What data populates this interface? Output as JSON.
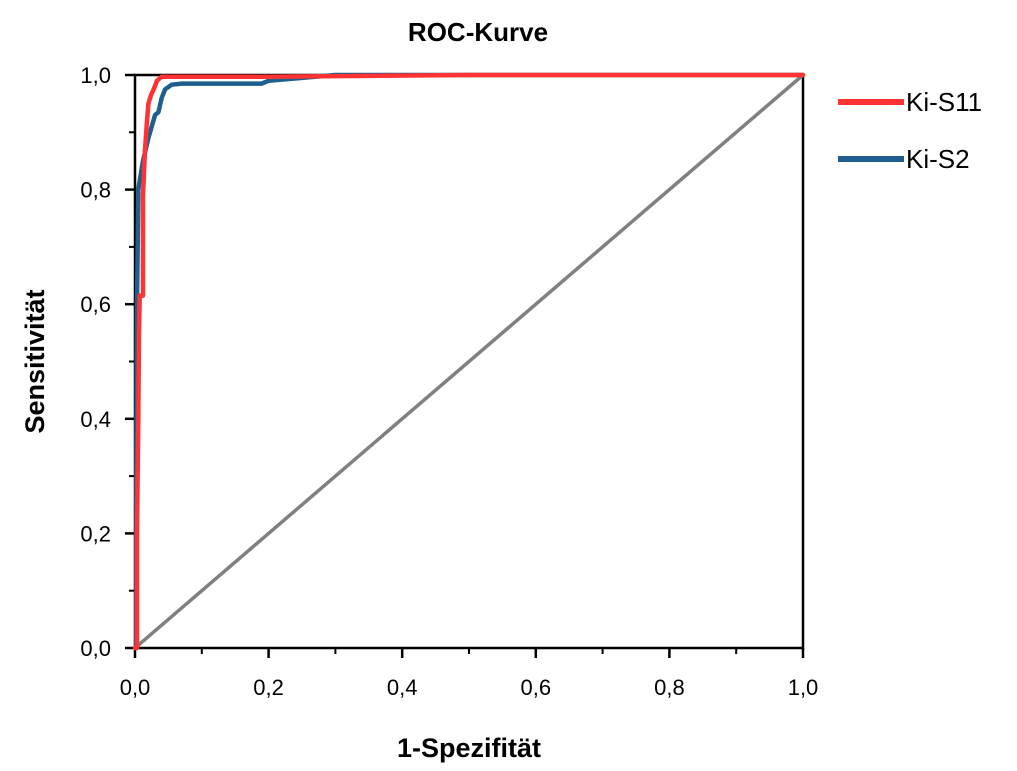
{
  "chart_data": {
    "type": "line",
    "title": "ROC-Kurve",
    "xlabel": "1-Spezifität",
    "ylabel": "Sensitivität",
    "xlim": [
      0,
      1
    ],
    "ylim": [
      0,
      1
    ],
    "x_ticks": [
      "0,0",
      "0,2",
      "0,4",
      "0,6",
      "0,8",
      "1,0"
    ],
    "y_ticks": [
      "0,0",
      "0,2",
      "0,4",
      "0,6",
      "0,8",
      "1,0"
    ],
    "grid": false,
    "legend_position": "right-top",
    "series": [
      {
        "name": "Ki-S11",
        "color": "#ff3333",
        "points": [
          [
            0.0,
            0.0
          ],
          [
            0.003,
            0.0
          ],
          [
            0.003,
            0.2
          ],
          [
            0.005,
            0.4
          ],
          [
            0.006,
            0.55
          ],
          [
            0.007,
            0.615
          ],
          [
            0.012,
            0.615
          ],
          [
            0.012,
            0.79
          ],
          [
            0.015,
            0.87
          ],
          [
            0.018,
            0.92
          ],
          [
            0.02,
            0.95
          ],
          [
            0.024,
            0.965
          ],
          [
            0.028,
            0.975
          ],
          [
            0.033,
            0.99
          ],
          [
            0.04,
            0.997
          ],
          [
            0.06,
            0.997
          ],
          [
            0.2,
            0.997
          ],
          [
            0.5,
            1.0
          ],
          [
            1.0,
            1.0
          ]
        ]
      },
      {
        "name": "Ki-S2",
        "color": "#1f5f8f",
        "points": [
          [
            0.0,
            0.0
          ],
          [
            0.002,
            0.0
          ],
          [
            0.002,
            0.3
          ],
          [
            0.003,
            0.6
          ],
          [
            0.004,
            0.7
          ],
          [
            0.005,
            0.8
          ],
          [
            0.012,
            0.85
          ],
          [
            0.02,
            0.89
          ],
          [
            0.025,
            0.91
          ],
          [
            0.03,
            0.93
          ],
          [
            0.035,
            0.935
          ],
          [
            0.04,
            0.96
          ],
          [
            0.045,
            0.975
          ],
          [
            0.055,
            0.983
          ],
          [
            0.07,
            0.985
          ],
          [
            0.1,
            0.985
          ],
          [
            0.19,
            0.985
          ],
          [
            0.2,
            0.99
          ],
          [
            0.25,
            0.995
          ],
          [
            0.3,
            1.0
          ],
          [
            1.0,
            1.0
          ]
        ]
      },
      {
        "name": "",
        "color": "#808080",
        "points": [
          [
            0.0,
            0.0
          ],
          [
            1.0,
            1.0
          ]
        ]
      }
    ]
  }
}
